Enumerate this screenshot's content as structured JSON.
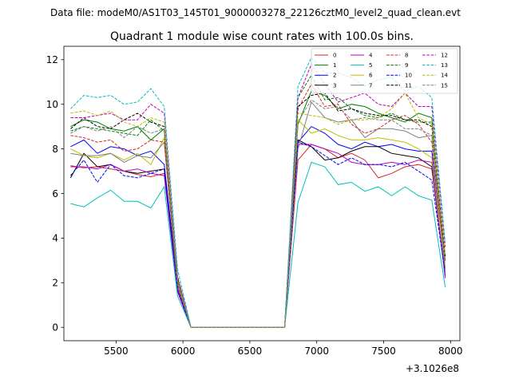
{
  "suptitle": "Data file: modeM0/AS1T03_145T01_9000003278_22126cztM0_level2_quad_clean.evt",
  "chart_data": {
    "type": "line",
    "title": "Quadrant 1 module wise count rates with 100.0s bins.",
    "xlabel": "",
    "ylabel": "",
    "x_offset_label": "+3.1026e8",
    "xlim": [
      5110,
      8070
    ],
    "ylim": [
      -0.6,
      12.6
    ],
    "xticks": [
      5500,
      6000,
      6500,
      7000,
      7500,
      8000
    ],
    "yticks": [
      0,
      2,
      4,
      6,
      8,
      10,
      12
    ],
    "x": [
      5160,
      5260,
      5360,
      5460,
      5560,
      5660,
      5760,
      5860,
      5960,
      6060,
      6160,
      6260,
      6360,
      6460,
      6560,
      6660,
      6760,
      6860,
      6960,
      7060,
      7160,
      7260,
      7360,
      7460,
      7560,
      7660,
      7760,
      7860,
      7960
    ],
    "legend_location": "top-right",
    "series": [
      {
        "name": "0",
        "color": "#d62728",
        "dash": false,
        "values": [
          7.25,
          7.15,
          7.2,
          7.1,
          7.0,
          6.85,
          6.75,
          6.9,
          1.6,
          0,
          0,
          0,
          0,
          0,
          0,
          0,
          0,
          7.5,
          8.2,
          8.0,
          7.6,
          7.8,
          7.5,
          6.7,
          6.9,
          7.2,
          7.3,
          7.1,
          3.2
        ]
      },
      {
        "name": "1",
        "color": "#008000",
        "dash": false,
        "values": [
          9.0,
          9.3,
          9.2,
          8.9,
          8.8,
          9.0,
          8.4,
          8.9,
          2.1,
          0,
          0,
          0,
          0,
          0,
          0,
          0,
          0,
          9.1,
          10.6,
          10.4,
          9.8,
          10.0,
          9.9,
          9.6,
          9.4,
          9.2,
          9.6,
          9.4,
          3.0
        ]
      },
      {
        "name": "2",
        "color": "#0000ff",
        "dash": false,
        "values": [
          8.1,
          8.4,
          7.8,
          8.1,
          8.0,
          7.7,
          7.9,
          7.3,
          1.9,
          0,
          0,
          0,
          0,
          0,
          0,
          0,
          0,
          8.3,
          9.0,
          8.7,
          8.2,
          8.0,
          8.3,
          8.1,
          8.2,
          8.0,
          7.9,
          7.9,
          2.6
        ]
      },
      {
        "name": "3",
        "color": "#000000",
        "dash": false,
        "values": [
          6.7,
          7.8,
          7.2,
          7.3,
          7.0,
          6.9,
          7.0,
          7.1,
          1.7,
          0,
          0,
          0,
          0,
          0,
          0,
          0,
          0,
          8.4,
          8.1,
          7.5,
          7.6,
          7.9,
          8.1,
          8.1,
          7.8,
          7.7,
          7.6,
          7.2,
          2.3
        ]
      },
      {
        "name": "4",
        "color": "#bf00bf",
        "dash": false,
        "values": [
          7.2,
          7.2,
          7.1,
          7.3,
          7.0,
          7.1,
          6.9,
          6.8,
          1.6,
          0,
          0,
          0,
          0,
          0,
          0,
          0,
          0,
          8.2,
          8.2,
          8.0,
          7.8,
          7.4,
          7.3,
          7.3,
          7.4,
          7.3,
          7.5,
          7.4,
          2.2
        ]
      },
      {
        "name": "5",
        "color": "#00bfbf",
        "dash": false,
        "values": [
          5.55,
          5.4,
          5.8,
          6.15,
          5.65,
          5.65,
          5.35,
          6.3,
          1.4,
          0,
          0,
          0,
          0,
          0,
          0,
          0,
          0,
          5.6,
          7.4,
          7.2,
          6.4,
          6.5,
          6.1,
          6.3,
          5.9,
          6.3,
          5.9,
          5.7,
          1.8
        ]
      },
      {
        "name": "6",
        "color": "#bfbf00",
        "dash": false,
        "values": [
          8.0,
          7.7,
          7.6,
          7.8,
          7.5,
          7.8,
          7.3,
          8.5,
          1.9,
          0,
          0,
          0,
          0,
          0,
          0,
          0,
          0,
          9.3,
          8.7,
          8.9,
          8.6,
          8.4,
          8.4,
          8.5,
          8.4,
          8.3,
          8.0,
          7.6,
          2.7
        ]
      },
      {
        "name": "7",
        "color": "#808080",
        "dash": false,
        "values": [
          7.8,
          7.7,
          7.7,
          7.8,
          7.4,
          7.7,
          7.6,
          8.3,
          1.8,
          0,
          0,
          0,
          0,
          0,
          0,
          0,
          0,
          8.0,
          10.1,
          9.4,
          9.2,
          9.3,
          8.5,
          8.9,
          8.9,
          8.8,
          8.5,
          8.6,
          2.6
        ]
      },
      {
        "name": "8",
        "color": "#d62728",
        "dash": true,
        "values": [
          8.6,
          8.5,
          8.3,
          8.4,
          7.9,
          8.0,
          8.4,
          8.3,
          1.9,
          0,
          0,
          0,
          0,
          0,
          0,
          0,
          0,
          9.8,
          10.9,
          9.9,
          10.0,
          9.1,
          8.7,
          8.9,
          9.3,
          9.5,
          9.1,
          8.3,
          2.9
        ]
      },
      {
        "name": "9",
        "color": "#008000",
        "dash": true,
        "values": [
          8.8,
          9.0,
          8.9,
          8.8,
          8.7,
          8.6,
          9.3,
          8.8,
          2.0,
          0,
          0,
          0,
          0,
          0,
          0,
          0,
          0,
          10.3,
          11.3,
          10.2,
          10.3,
          9.8,
          9.5,
          9.4,
          9.6,
          9.3,
          9.2,
          9.2,
          3.1
        ]
      },
      {
        "name": "10",
        "color": "#0000ff",
        "dash": true,
        "values": [
          6.8,
          7.5,
          6.5,
          7.3,
          6.8,
          6.7,
          6.9,
          7.1,
          1.7,
          0,
          0,
          0,
          0,
          0,
          0,
          0,
          0,
          8.3,
          8.1,
          7.7,
          7.3,
          7.6,
          7.3,
          7.3,
          7.2,
          7.4,
          7.0,
          6.6,
          2.4
        ]
      },
      {
        "name": "11",
        "color": "#000000",
        "dash": true,
        "values": [
          8.9,
          9.4,
          9.0,
          8.9,
          9.3,
          9.6,
          9.2,
          9.0,
          2.2,
          0,
          0,
          0,
          0,
          0,
          0,
          0,
          0,
          9.9,
          10.4,
          10.5,
          9.7,
          9.8,
          9.6,
          9.5,
          9.5,
          9.3,
          9.3,
          9.0,
          3.2
        ]
      },
      {
        "name": "12",
        "color": "#bf00bf",
        "dash": true,
        "values": [
          9.4,
          9.4,
          9.5,
          9.6,
          9.3,
          9.3,
          10.0,
          9.6,
          2.3,
          0,
          0,
          0,
          0,
          0,
          0,
          0,
          0,
          10.3,
          11.8,
          10.9,
          10.1,
          10.3,
          10.5,
          10.0,
          9.9,
          10.5,
          9.9,
          9.9,
          3.6
        ]
      },
      {
        "name": "13",
        "color": "#00bfbf",
        "dash": true,
        "values": [
          9.8,
          10.4,
          10.3,
          10.4,
          10.0,
          10.1,
          10.7,
          9.9,
          2.6,
          0,
          0,
          0,
          0,
          0,
          0,
          0,
          0,
          10.8,
          12.1,
          11.4,
          11.4,
          11.2,
          10.8,
          11.1,
          11.2,
          10.6,
          10.8,
          10.3,
          3.8
        ]
      },
      {
        "name": "14",
        "color": "#bfbf00",
        "dash": true,
        "values": [
          9.6,
          9.7,
          9.5,
          9.7,
          9.2,
          9.0,
          9.4,
          9.2,
          2.1,
          0,
          0,
          0,
          0,
          0,
          0,
          0,
          0,
          9.6,
          9.5,
          9.4,
          9.1,
          9.3,
          9.3,
          9.4,
          9.8,
          10.5,
          9.4,
          9.1,
          3.3
        ]
      },
      {
        "name": "15",
        "color": "#808080",
        "dash": true,
        "values": [
          8.7,
          9.0,
          8.8,
          9.0,
          8.5,
          9.0,
          8.7,
          8.9,
          2.0,
          0,
          0,
          0,
          0,
          0,
          0,
          0,
          0,
          9.2,
          10.2,
          9.8,
          9.9,
          9.3,
          9.4,
          9.3,
          9.3,
          8.9,
          8.9,
          8.6,
          3.0
        ]
      }
    ]
  }
}
